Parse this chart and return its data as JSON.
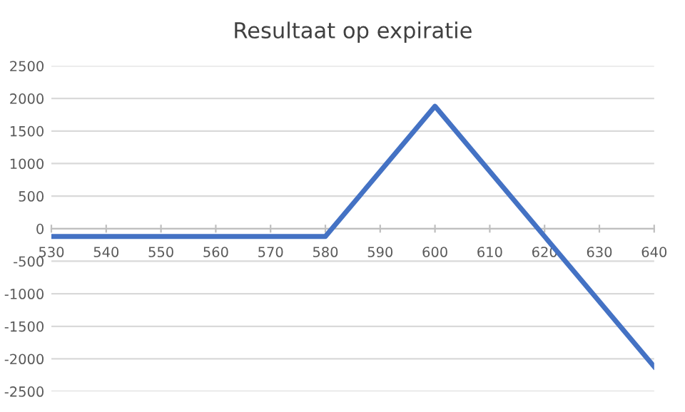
{
  "chart_data": {
    "type": "line",
    "title": "Resultaat op expiratie",
    "x": [
      530,
      580,
      600,
      640
    ],
    "series": [
      {
        "color": "#4472c4",
        "values": [
          -120,
          -120,
          1880,
          -2120
        ]
      }
    ],
    "xlim": [
      530,
      640
    ],
    "xticks": [
      530,
      540,
      550,
      560,
      570,
      580,
      590,
      600,
      610,
      620,
      630,
      640
    ],
    "ylim": [
      -2500,
      2500
    ],
    "yticks": [
      -2500,
      -2000,
      -1500,
      -1000,
      -500,
      0,
      500,
      1000,
      1500,
      2000,
      2500
    ],
    "grid": "y",
    "legend": false,
    "marker": "none",
    "line_style": "solid"
  }
}
